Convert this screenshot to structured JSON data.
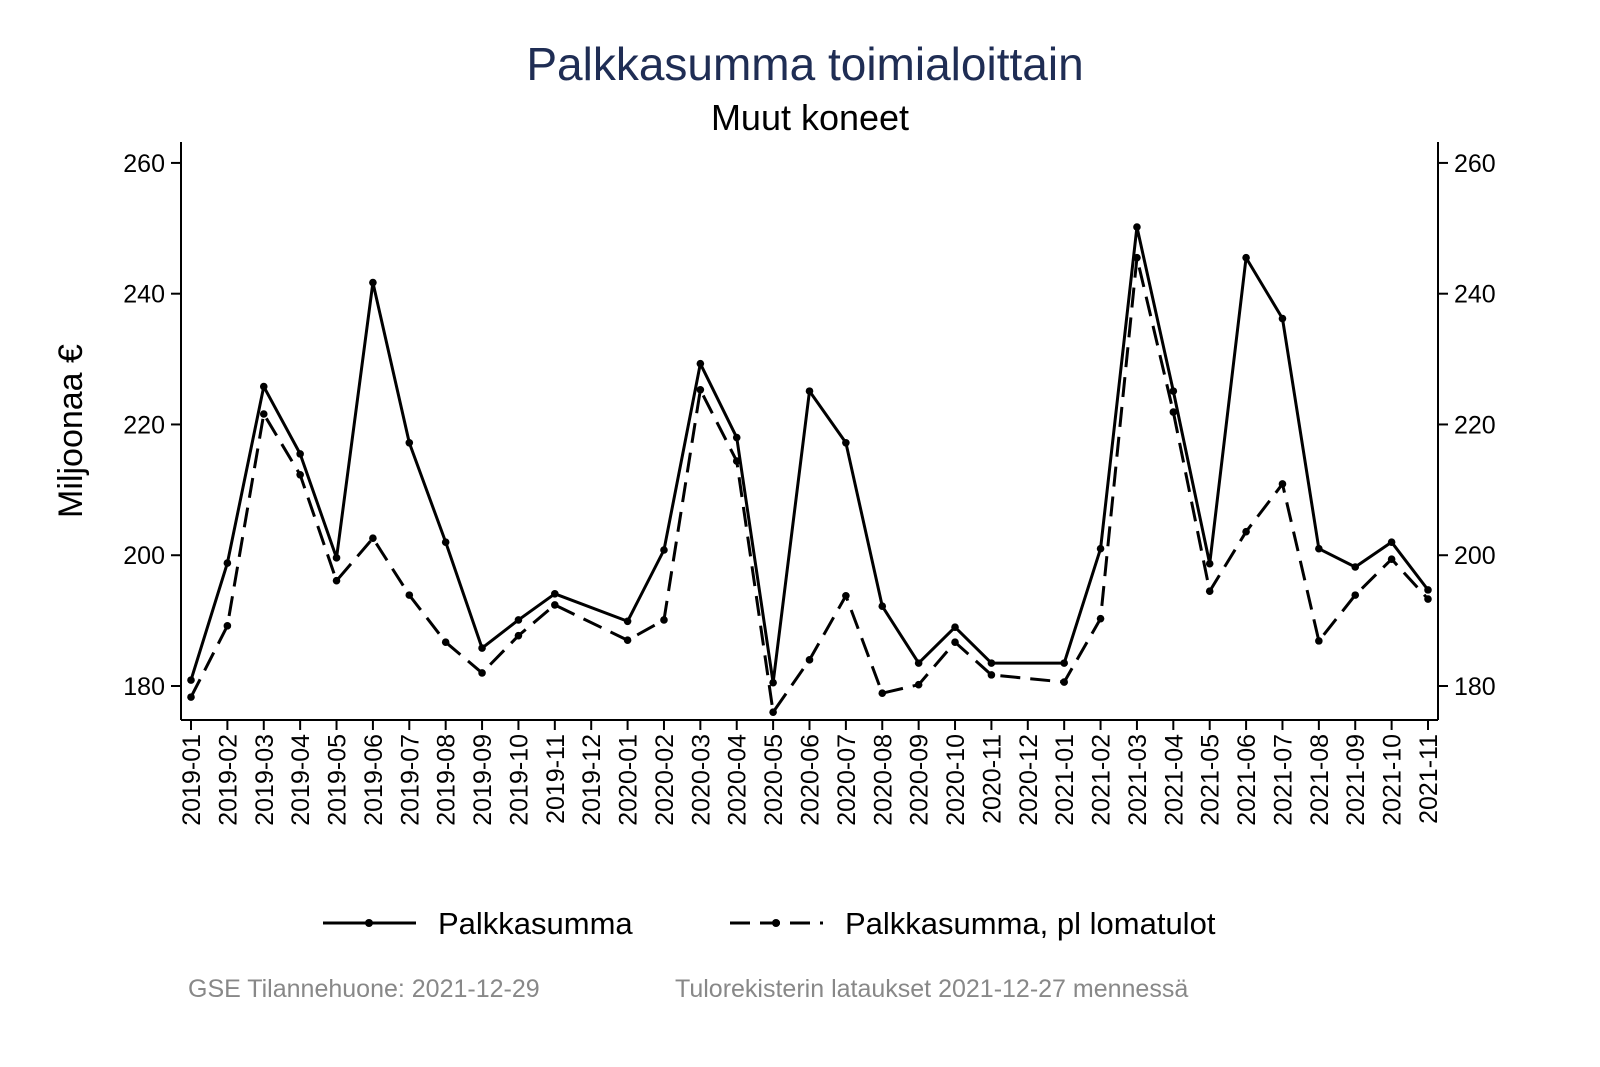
{
  "chart_data": {
    "type": "line",
    "title": "Palkkasumma toimialoittain",
    "subtitle": "Muut koneet",
    "ylabel": "Miljoonaa €",
    "xlabel": "",
    "ylim": [
      174.8,
      263.2
    ],
    "yticks": [
      180,
      200,
      220,
      240,
      260
    ],
    "grid": false,
    "legend_position": "bottom",
    "categories": [
      "2019-01",
      "2019-02",
      "2019-03",
      "2019-04",
      "2019-05",
      "2019-06",
      "2019-07",
      "2019-08",
      "2019-09",
      "2019-10",
      "2019-11",
      "2019-12",
      "2020-01",
      "2020-02",
      "2020-03",
      "2020-04",
      "2020-05",
      "2020-06",
      "2020-07",
      "2020-08",
      "2020-09",
      "2020-10",
      "2020-11",
      "2020-12",
      "2021-01",
      "2021-02",
      "2021-03",
      "2021-04",
      "2021-05",
      "2021-06",
      "2021-07",
      "2021-08",
      "2021-09",
      "2021-10",
      "2021-11"
    ],
    "series": [
      {
        "name": "Palkkasumma",
        "style": "solid",
        "values": [
          180.9,
          198.8,
          225.8,
          215.5,
          199.6,
          241.7,
          217.2,
          202.0,
          185.8,
          190.1,
          194.1,
          null,
          189.9,
          200.8,
          229.3,
          218.0,
          180.5,
          225.1,
          217.2,
          192.2,
          183.5,
          189.0,
          183.5,
          null,
          183.5,
          201.0,
          250.2,
          225.1,
          198.7,
          245.5,
          236.2,
          201.0,
          198.2,
          202.0,
          194.7
        ]
      },
      {
        "name": "Palkkasumma, pl lomatulot",
        "style": "dashed",
        "values": [
          178.3,
          189.2,
          221.6,
          212.3,
          196.1,
          202.6,
          193.9,
          186.7,
          182.0,
          187.7,
          192.4,
          null,
          187.0,
          190.1,
          225.3,
          214.4,
          176.0,
          184.0,
          193.8,
          178.9,
          180.2,
          186.7,
          181.7,
          null,
          180.6,
          190.3,
          245.5,
          221.9,
          194.5,
          203.6,
          210.9,
          186.9,
          193.9,
          199.4,
          193.3
        ]
      }
    ],
    "colors": {
      "title": "#1f2d54",
      "lines": "#000000",
      "footer": "#888888"
    }
  },
  "footer": {
    "left": "GSE Tilannehuone: 2021-12-29",
    "right": "Tulorekisterin lataukset 2021-12-27 mennessä"
  }
}
